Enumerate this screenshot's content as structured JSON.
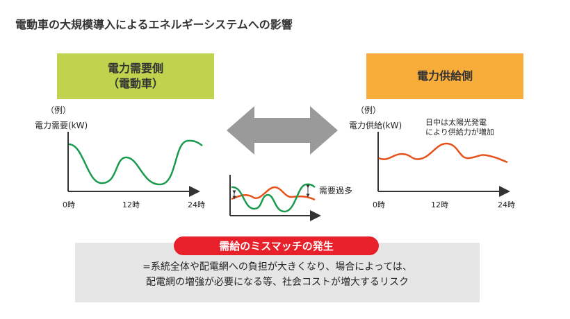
{
  "title": "電動車の大規模導入によるエネルギーシステムへの影響",
  "demand": {
    "label_line1": "電力需要側",
    "label_line2": "（電動車）",
    "example": "（例）",
    "ylabel": "電力需要(kW)",
    "color": "#bfd34e",
    "curve_color": "#1a9a4e"
  },
  "supply": {
    "label": "電力供給側",
    "example": "（例）",
    "ylabel": "電力供給(kW)",
    "note_line1": "日中は太陽光発電",
    "note_line2": "により供給力が増加",
    "color": "#f8ad3b",
    "curve_color": "#e8501a"
  },
  "ticks": [
    "0時",
    "12時",
    "24時"
  ],
  "mismatch": {
    "overdemand_label": "需要過多",
    "badge": "需給のミスマッチの発生",
    "text_line1": "=系統全体や配電網への負担が大きくなり、場合によっては、",
    "text_line2": "配電網の増強が必要になる等、社会コストが増大するリスク",
    "badge_color": "#e8202a"
  }
}
